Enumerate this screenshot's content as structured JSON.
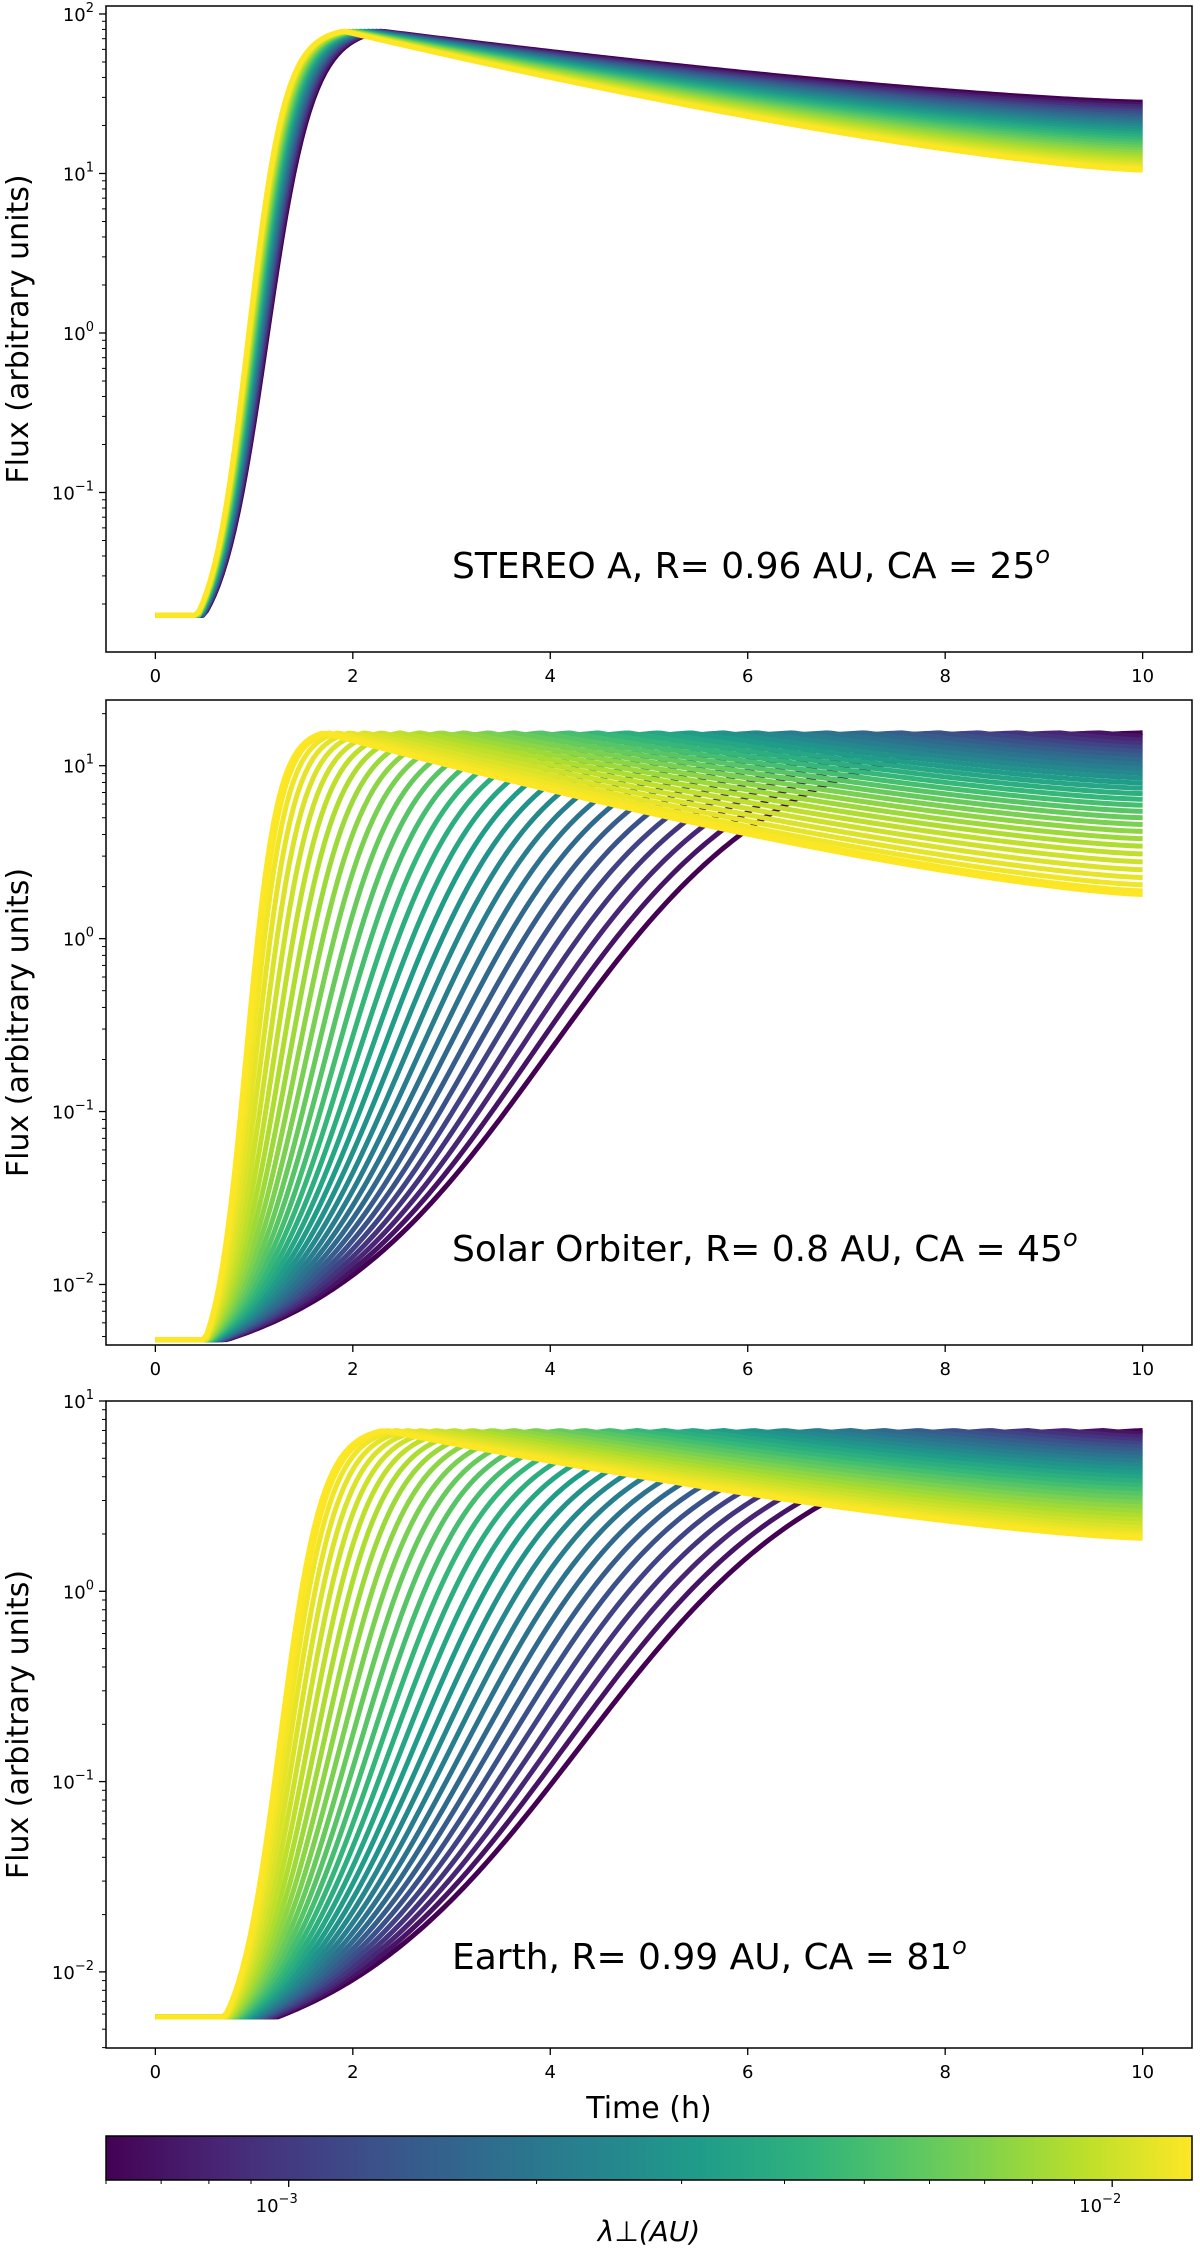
{
  "chart_data": [
    {
      "type": "line",
      "annotation": "STEREO A, R= 0.96 AU, CA = 25",
      "annotation_superscript": "o",
      "ylabel": "Flux (arbitrary units)",
      "xlabel": "",
      "yscale": "log",
      "xlim": [
        -0.5,
        10.5
      ],
      "ylim_log10": [
        -2.0,
        2.05
      ],
      "xticks": [
        "0",
        "2",
        "4",
        "6",
        "8",
        "10"
      ],
      "yticks": [
        {
          "base": "10",
          "exp": "2",
          "value": 100
        },
        {
          "base": "10",
          "exp": "1",
          "value": 10
        },
        {
          "base": "10",
          "exp": "0",
          "value": 1
        },
        {
          "base": "10",
          "exp": "−1",
          "value": 0.1
        }
      ],
      "series_count": 30,
      "model": {
        "baseline": 0.017,
        "onset_h": 0.42,
        "onset_spread_h": 0.08,
        "peak": 78,
        "peak_time_h": [
          2.3,
          1.9
        ],
        "rise_width_h": [
          0.55,
          0.4
        ],
        "end_value": [
          28,
          10.5
        ]
      }
    },
    {
      "type": "line",
      "annotation": "Solar Orbiter, R= 0.8 AU, CA = 45",
      "annotation_superscript": "o",
      "ylabel": "Flux (arbitrary units)",
      "xlabel": "",
      "yscale": "log",
      "xlim": [
        -0.5,
        10.5
      ],
      "ylim_log10": [
        -2.35,
        1.38
      ],
      "xticks": [
        "0",
        "2",
        "4",
        "6",
        "8",
        "10"
      ],
      "yticks": [
        {
          "base": "10",
          "exp": "1",
          "value": 10
        },
        {
          "base": "10",
          "exp": "0",
          "value": 1
        },
        {
          "base": "10",
          "exp": "−1",
          "value": 0.1
        },
        {
          "base": "10",
          "exp": "−2",
          "value": 0.01
        }
      ],
      "series_count": 30,
      "model": {
        "baseline": 0.0048,
        "onset_h": 0.5,
        "onset_spread_h": 0.25,
        "peak": 15.5,
        "peak_time_h": [
          10.0,
          1.7
        ],
        "rise_width_h": [
          2.8,
          0.38
        ],
        "end_value": [
          15.5,
          1.8
        ]
      }
    },
    {
      "type": "line",
      "annotation": "Earth, R= 0.99 AU, CA = 81",
      "annotation_superscript": "o",
      "ylabel": "Flux (arbitrary units)",
      "xlabel": "Time (h)",
      "yscale": "log",
      "xlim": [
        -0.5,
        10.5
      ],
      "ylim_log10": [
        -2.4,
        1.0
      ],
      "xticks": [
        "0",
        "2",
        "4",
        "6",
        "8",
        "10"
      ],
      "yticks": [
        {
          "base": "10",
          "exp": "1",
          "value": 10
        },
        {
          "base": "10",
          "exp": "0",
          "value": 1
        },
        {
          "base": "10",
          "exp": "−1",
          "value": 0.1
        },
        {
          "base": "10",
          "exp": "−2",
          "value": 0.01
        }
      ],
      "series_count": 30,
      "model": {
        "baseline": 0.0058,
        "onset_h": 0.7,
        "onset_spread_h": 0.6,
        "peak": 7.0,
        "peak_time_h": [
          10.0,
          2.3
        ],
        "rise_width_h": [
          4.5,
          0.55
        ],
        "end_value": [
          7.0,
          1.9
        ]
      }
    }
  ],
  "colorbar": {
    "label": "λ⊥(AU)",
    "colormap": "viridis",
    "scale": "log",
    "range": [
      0.0006,
      0.0125
    ],
    "ticks": [
      {
        "base": "10",
        "exp": "−3",
        "value": 0.001
      },
      {
        "base": "10",
        "exp": "−2",
        "value": 0.01
      }
    ],
    "minor_ticks": [
      0.0006,
      0.0007,
      0.0008,
      0.0009,
      0.002,
      0.003,
      0.004,
      0.005,
      0.006,
      0.007,
      0.008,
      0.009
    ]
  }
}
